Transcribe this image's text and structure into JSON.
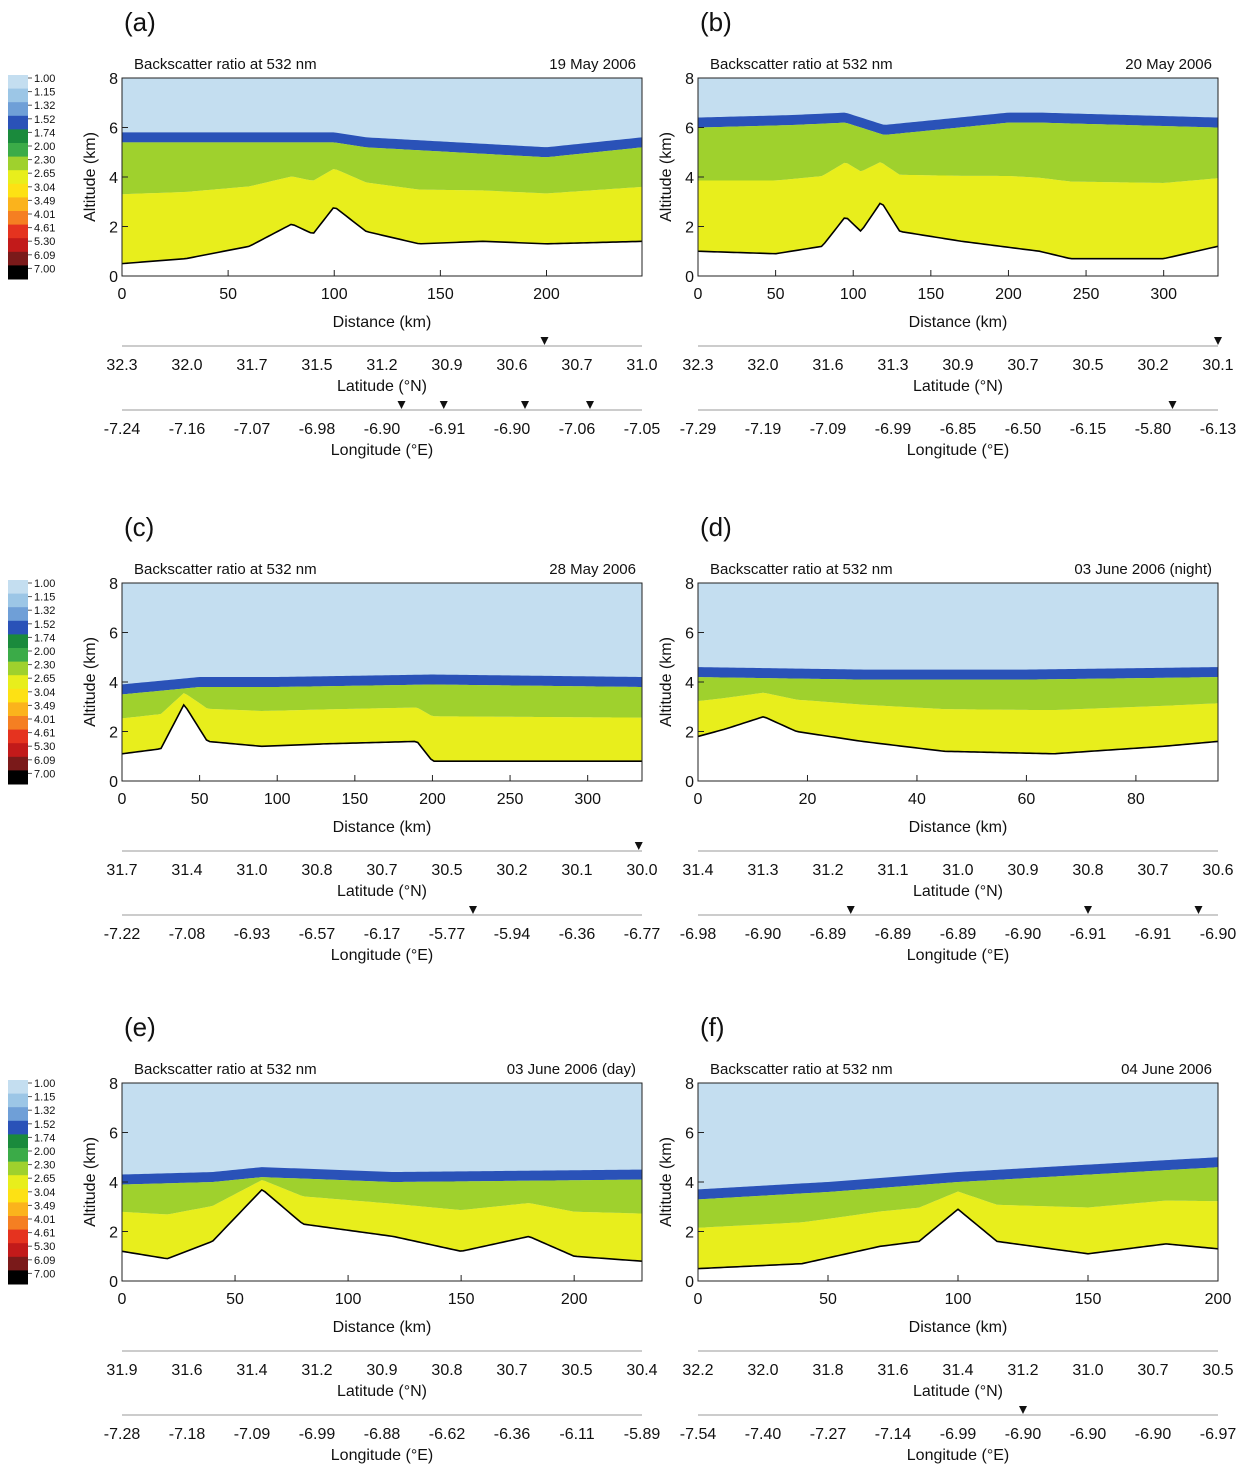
{
  "colors": {
    "scale": [
      "#c4def0",
      "#9cc6e6",
      "#6f9fd7",
      "#2a52b8",
      "#1a8a3c",
      "#3bab48",
      "#9fd12d",
      "#e8ee1c",
      "#fde114",
      "#fbb31c",
      "#f57f22",
      "#e5331f",
      "#c21a1a",
      "#7a1a1a",
      "#000000"
    ],
    "background": "#ffffff",
    "axis": "#222222"
  },
  "colorbar": {
    "ticks": [
      "1.00",
      "1.15",
      "1.32",
      "1.52",
      "1.74",
      "2.00",
      "2.30",
      "2.65",
      "3.04",
      "3.49",
      "4.01",
      "4.61",
      "5.30",
      "6.09",
      "7.00"
    ]
  },
  "chart_data": [
    {
      "panel": "(a)",
      "type": "heatmap",
      "title": "Backscatter ratio at 532 nm",
      "date": "19 May 2006",
      "ylabel": "Altitude (km)",
      "xlabel": "Distance (km)",
      "ylim": [
        0,
        8
      ],
      "xlim": [
        0,
        245
      ],
      "yticks": [
        "0",
        "2",
        "4",
        "6",
        "8"
      ],
      "xticks": [
        0,
        50,
        100,
        150,
        200
      ],
      "lat_ticks": [
        "32.3",
        "32.0",
        "31.7",
        "31.5",
        "31.2",
        "30.9",
        "30.6",
        "30.7",
        "31.0"
      ],
      "lon_ticks": [
        "-7.24",
        "-7.16",
        "-7.07",
        "-6.98",
        "-6.90",
        "-6.91",
        "-6.90",
        "-7.06",
        "-7.05"
      ],
      "lat_label": "Latitude (°N)",
      "lon_label": "Longitude (°E)",
      "lat_markers": [
        6.5
      ],
      "lon_markers": [
        4.3,
        4.95,
        6.2,
        7.2
      ],
      "ground": [
        [
          0,
          0.5
        ],
        [
          30,
          0.7
        ],
        [
          60,
          1.2
        ],
        [
          80,
          2.1
        ],
        [
          90,
          1.7
        ],
        [
          100,
          2.8
        ],
        [
          115,
          1.8
        ],
        [
          140,
          1.3
        ],
        [
          170,
          1.4
        ],
        [
          200,
          1.3
        ],
        [
          245,
          1.4
        ]
      ],
      "mixing_top": [
        [
          0,
          5.6
        ],
        [
          100,
          5.6
        ],
        [
          115,
          5.4
        ],
        [
          200,
          5.0
        ],
        [
          245,
          5.4
        ]
      ]
    },
    {
      "panel": "(b)",
      "type": "heatmap",
      "title": "Backscatter ratio at 532 nm",
      "date": "20 May 2006",
      "ylabel": "Altitude (km)",
      "xlabel": "Distance (km)",
      "ylim": [
        0,
        8
      ],
      "xlim": [
        0,
        335
      ],
      "yticks": [
        "0",
        "2",
        "4",
        "6",
        "8"
      ],
      "xticks": [
        0,
        50,
        100,
        150,
        200,
        250,
        300
      ],
      "lat_ticks": [
        "32.3",
        "32.0",
        "31.6",
        "31.3",
        "30.9",
        "30.7",
        "30.5",
        "30.2",
        "30.1"
      ],
      "lon_ticks": [
        "-7.29",
        "-7.19",
        "-7.09",
        "-6.99",
        "-6.85",
        "-6.50",
        "-6.15",
        "-5.80",
        "-6.13"
      ],
      "lat_label": "Latitude (°N)",
      "lon_label": "Longitude (°E)",
      "lat_markers": [
        8.0
      ],
      "lon_markers": [
        7.3
      ],
      "ground": [
        [
          0,
          1.0
        ],
        [
          50,
          0.9
        ],
        [
          80,
          1.2
        ],
        [
          95,
          2.4
        ],
        [
          105,
          1.8
        ],
        [
          118,
          3.0
        ],
        [
          130,
          1.8
        ],
        [
          170,
          1.4
        ],
        [
          220,
          1.0
        ],
        [
          240,
          0.7
        ],
        [
          300,
          0.7
        ],
        [
          335,
          1.2
        ]
      ],
      "mixing_top": [
        [
          0,
          6.2
        ],
        [
          60,
          6.3
        ],
        [
          95,
          6.4
        ],
        [
          120,
          5.9
        ],
        [
          200,
          6.4
        ],
        [
          220,
          6.4
        ],
        [
          335,
          6.2
        ]
      ]
    },
    {
      "panel": "(c)",
      "type": "heatmap",
      "title": "Backscatter ratio at 532 nm",
      "date": "28 May 2006",
      "ylabel": "Altitude (km)",
      "xlabel": "Distance (km)",
      "ylim": [
        0,
        8
      ],
      "xlim": [
        0,
        335
      ],
      "yticks": [
        "0",
        "2",
        "4",
        "6",
        "8"
      ],
      "xticks": [
        0,
        50,
        100,
        150,
        200,
        250,
        300
      ],
      "lat_ticks": [
        "31.7",
        "31.4",
        "31.0",
        "30.8",
        "30.7",
        "30.5",
        "30.2",
        "30.1",
        "30.0"
      ],
      "lon_ticks": [
        "-7.22",
        "-7.08",
        "-6.93",
        "-6.57",
        "-6.17",
        "-5.77",
        "-5.94",
        "-6.36",
        "-6.77"
      ],
      "lat_label": "Latitude (°N)",
      "lon_label": "Longitude (°E)",
      "lat_markers": [
        7.95
      ],
      "lon_markers": [
        5.4
      ],
      "ground": [
        [
          0,
          1.1
        ],
        [
          25,
          1.3
        ],
        [
          40,
          3.1
        ],
        [
          55,
          1.6
        ],
        [
          90,
          1.4
        ],
        [
          130,
          1.5
        ],
        [
          190,
          1.6
        ],
        [
          200,
          0.8
        ],
        [
          280,
          0.8
        ],
        [
          335,
          0.8
        ]
      ],
      "mixing_top": [
        [
          0,
          3.7
        ],
        [
          50,
          4.0
        ],
        [
          100,
          4.0
        ],
        [
          200,
          4.1
        ],
        [
          335,
          4.0
        ]
      ]
    },
    {
      "panel": "(d)",
      "type": "heatmap",
      "title": "Backscatter ratio at 532 nm",
      "date": "03 June 2006 (night)",
      "ylabel": "Altitude (km)",
      "xlabel": "Distance (km)",
      "ylim": [
        0,
        8
      ],
      "xlim": [
        0,
        95
      ],
      "yticks": [
        "0",
        "2",
        "4",
        "6",
        "8"
      ],
      "xticks": [
        0,
        20,
        40,
        60,
        80
      ],
      "lat_ticks": [
        "31.4",
        "31.3",
        "31.2",
        "31.1",
        "31.0",
        "30.9",
        "30.8",
        "30.7",
        "30.6"
      ],
      "lon_ticks": [
        "-6.98",
        "-6.90",
        "-6.89",
        "-6.89",
        "-6.89",
        "-6.90",
        "-6.91",
        "-6.91",
        "-6.90"
      ],
      "lat_label": "Latitude (°N)",
      "lon_label": "Longitude (°E)",
      "lat_markers": [],
      "lon_markers": [
        2.35,
        6.0,
        7.7
      ],
      "ground": [
        [
          0,
          1.8
        ],
        [
          5,
          2.1
        ],
        [
          12,
          2.6
        ],
        [
          18,
          2.0
        ],
        [
          30,
          1.6
        ],
        [
          45,
          1.2
        ],
        [
          65,
          1.1
        ],
        [
          85,
          1.4
        ],
        [
          95,
          1.6
        ]
      ],
      "mixing_top": [
        [
          0,
          4.4
        ],
        [
          30,
          4.3
        ],
        [
          60,
          4.3
        ],
        [
          95,
          4.4
        ]
      ]
    },
    {
      "panel": "(e)",
      "type": "heatmap",
      "title": "Backscatter ratio at 532 nm",
      "date": "03 June 2006 (day)",
      "ylabel": "Altitude (km)",
      "xlabel": "Distance (km)",
      "ylim": [
        0,
        8
      ],
      "xlim": [
        0,
        230
      ],
      "yticks": [
        "0",
        "2",
        "4",
        "6",
        "8"
      ],
      "xticks": [
        0,
        50,
        100,
        150,
        200
      ],
      "lat_ticks": [
        "31.9",
        "31.6",
        "31.4",
        "31.2",
        "30.9",
        "30.8",
        "30.7",
        "30.5",
        "30.4"
      ],
      "lon_ticks": [
        "-7.28",
        "-7.18",
        "-7.09",
        "-6.99",
        "-6.88",
        "-6.62",
        "-6.36",
        "-6.11",
        "-5.89"
      ],
      "lat_label": "Latitude (°N)",
      "lon_label": "Longitude (°E)",
      "lat_markers": [],
      "lon_markers": [],
      "ground": [
        [
          0,
          1.2
        ],
        [
          20,
          0.9
        ],
        [
          40,
          1.6
        ],
        [
          62,
          3.7
        ],
        [
          80,
          2.3
        ],
        [
          120,
          1.8
        ],
        [
          150,
          1.2
        ],
        [
          180,
          1.8
        ],
        [
          200,
          1.0
        ],
        [
          230,
          0.8
        ]
      ],
      "mixing_top": [
        [
          0,
          4.1
        ],
        [
          40,
          4.2
        ],
        [
          62,
          4.4
        ],
        [
          120,
          4.2
        ],
        [
          230,
          4.3
        ]
      ]
    },
    {
      "panel": "(f)",
      "type": "heatmap",
      "title": "Backscatter ratio at 532 nm",
      "date": "04 June 2006",
      "ylabel": "Altitude (km)",
      "xlabel": "Distance (km)",
      "ylim": [
        0,
        8
      ],
      "xlim": [
        0,
        200
      ],
      "yticks": [
        "0",
        "2",
        "4",
        "6",
        "8"
      ],
      "xticks": [
        0,
        50,
        100,
        150,
        200
      ],
      "lat_ticks": [
        "32.2",
        "32.0",
        "31.8",
        "31.6",
        "31.4",
        "31.2",
        "31.0",
        "30.7",
        "30.5"
      ],
      "lon_ticks": [
        "-7.54",
        "-7.40",
        "-7.27",
        "-7.14",
        "-6.99",
        "-6.90",
        "-6.90",
        "-6.90",
        "-6.97"
      ],
      "lat_label": "Latitude (°N)",
      "lon_label": "Longitude (°E)",
      "lat_markers": [],
      "lon_markers": [
        5.0
      ],
      "ground": [
        [
          0,
          0.5
        ],
        [
          40,
          0.7
        ],
        [
          70,
          1.4
        ],
        [
          85,
          1.6
        ],
        [
          100,
          2.9
        ],
        [
          115,
          1.6
        ],
        [
          150,
          1.1
        ],
        [
          180,
          1.5
        ],
        [
          200,
          1.3
        ]
      ],
      "mixing_top": [
        [
          0,
          3.5
        ],
        [
          50,
          3.8
        ],
        [
          100,
          4.2
        ],
        [
          150,
          4.5
        ],
        [
          200,
          4.8
        ]
      ]
    }
  ]
}
